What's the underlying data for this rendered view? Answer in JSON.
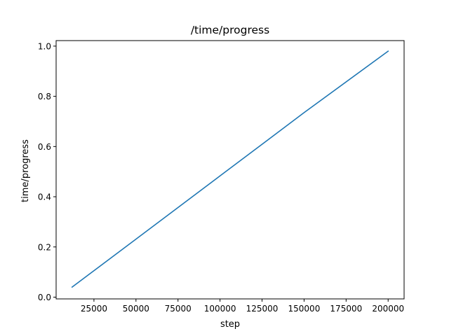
{
  "chart_data": {
    "type": "line",
    "title": "/time/progress",
    "xlabel": "step",
    "ylabel": "time/progress",
    "xlim": [
      2500,
      209500
    ],
    "ylim": [
      -0.007,
      1.022
    ],
    "grid": false,
    "x_ticks": [
      {
        "value": 25000,
        "label": "25000"
      },
      {
        "value": 50000,
        "label": "50000"
      },
      {
        "value": 75000,
        "label": "75000"
      },
      {
        "value": 100000,
        "label": "100000"
      },
      {
        "value": 125000,
        "label": "125000"
      },
      {
        "value": 150000,
        "label": "150000"
      },
      {
        "value": 175000,
        "label": "175000"
      },
      {
        "value": 200000,
        "label": "200000"
      }
    ],
    "y_ticks": [
      {
        "value": 0.0,
        "label": "0.0"
      },
      {
        "value": 0.2,
        "label": "0.2"
      },
      {
        "value": 0.4,
        "label": "0.4"
      },
      {
        "value": 0.6,
        "label": "0.6"
      },
      {
        "value": 0.8,
        "label": "0.8"
      },
      {
        "value": 1.0,
        "label": "1.0"
      }
    ],
    "series": [
      {
        "color": "#1f77b4",
        "x": [
          12000,
          50000,
          100000,
          150000,
          200000
        ],
        "y": [
          0.04,
          0.231,
          0.483,
          0.735,
          0.98
        ]
      }
    ]
  }
}
